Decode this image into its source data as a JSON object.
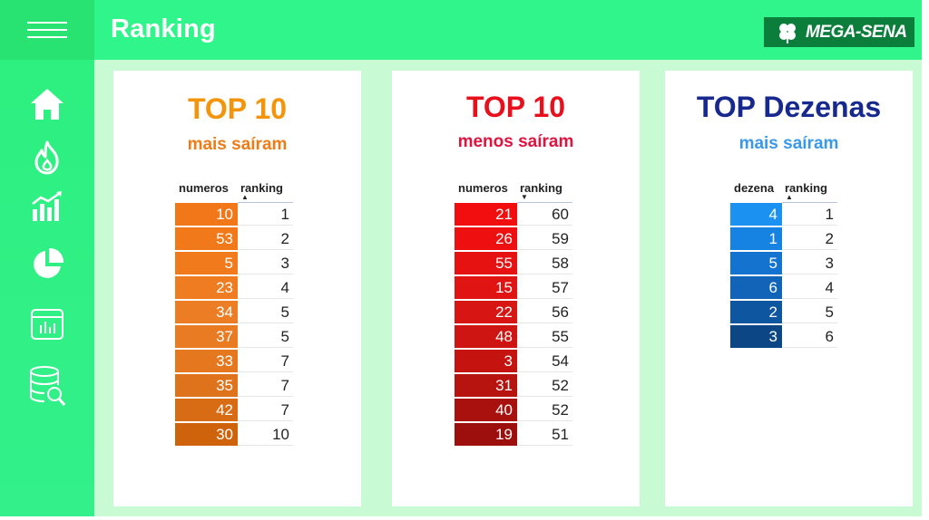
{
  "header": {
    "title": "Ranking",
    "logo_text": "MEGA-SENA"
  },
  "sidebar": {
    "items": [
      {
        "name": "home-icon"
      },
      {
        "name": "fire-icon"
      },
      {
        "name": "bar-chart-icon"
      },
      {
        "name": "pie-chart-icon"
      },
      {
        "name": "dashboard-icon"
      },
      {
        "name": "database-search-icon"
      }
    ]
  },
  "cards": [
    {
      "title": "TOP 10",
      "subtitle": "mais saíram",
      "title_color": "#f4940b",
      "subtitle_color": "#ef7b16",
      "col_num": "numeros",
      "col_rank": "ranking",
      "rows": [
        {
          "num": "10",
          "rank": "1",
          "color": "#f27718"
        },
        {
          "num": "53",
          "rank": "2",
          "color": "#f27919"
        },
        {
          "num": "5",
          "rank": "3",
          "color": "#f17b1c"
        },
        {
          "num": "23",
          "rank": "4",
          "color": "#ef7c21"
        },
        {
          "num": "34",
          "rank": "5",
          "color": "#ec7d24"
        },
        {
          "num": "37",
          "rank": "5",
          "color": "#e97b22"
        },
        {
          "num": "33",
          "rank": "7",
          "color": "#e5781f"
        },
        {
          "num": "35",
          "rank": "7",
          "color": "#df731b"
        },
        {
          "num": "42",
          "rank": "7",
          "color": "#d86c14"
        },
        {
          "num": "30",
          "rank": "10",
          "color": "#cf630b"
        }
      ]
    },
    {
      "title": "TOP 10",
      "subtitle": "menos saíram",
      "title_color": "#e8101c",
      "subtitle_color": "#e0133f",
      "col_num": "numeros",
      "col_rank": "ranking",
      "rows": [
        {
          "num": "21",
          "rank": "60",
          "color": "#f20d0f"
        },
        {
          "num": "26",
          "rank": "59",
          "color": "#ee0f10"
        },
        {
          "num": "55",
          "rank": "58",
          "color": "#e61212"
        },
        {
          "num": "15",
          "rank": "57",
          "color": "#df1413"
        },
        {
          "num": "22",
          "rank": "56",
          "color": "#d71512"
        },
        {
          "num": "48",
          "rank": "55",
          "color": "#cf1511"
        },
        {
          "num": "3",
          "rank": "54",
          "color": "#c51410"
        },
        {
          "num": "31",
          "rank": "52",
          "color": "#b7130f"
        },
        {
          "num": "40",
          "rank": "52",
          "color": "#a9110e"
        },
        {
          "num": "19",
          "rank": "51",
          "color": "#9c0f0d"
        }
      ]
    },
    {
      "title": "TOP Dezenas",
      "subtitle": "mais saíram",
      "title_color": "#17288e",
      "subtitle_color": "#3a98ea",
      "col_num": "dezena",
      "col_rank": "ranking",
      "rows": [
        {
          "num": "4",
          "rank": "1",
          "color": "#1b91f2"
        },
        {
          "num": "1",
          "rank": "2",
          "color": "#1682e2"
        },
        {
          "num": "5",
          "rank": "3",
          "color": "#1473cf"
        },
        {
          "num": "6",
          "rank": "4",
          "color": "#1264b9"
        },
        {
          "num": "2",
          "rank": "5",
          "color": "#0f56a1"
        },
        {
          "num": "3",
          "rank": "6",
          "color": "#0c4684"
        }
      ]
    }
  ]
}
